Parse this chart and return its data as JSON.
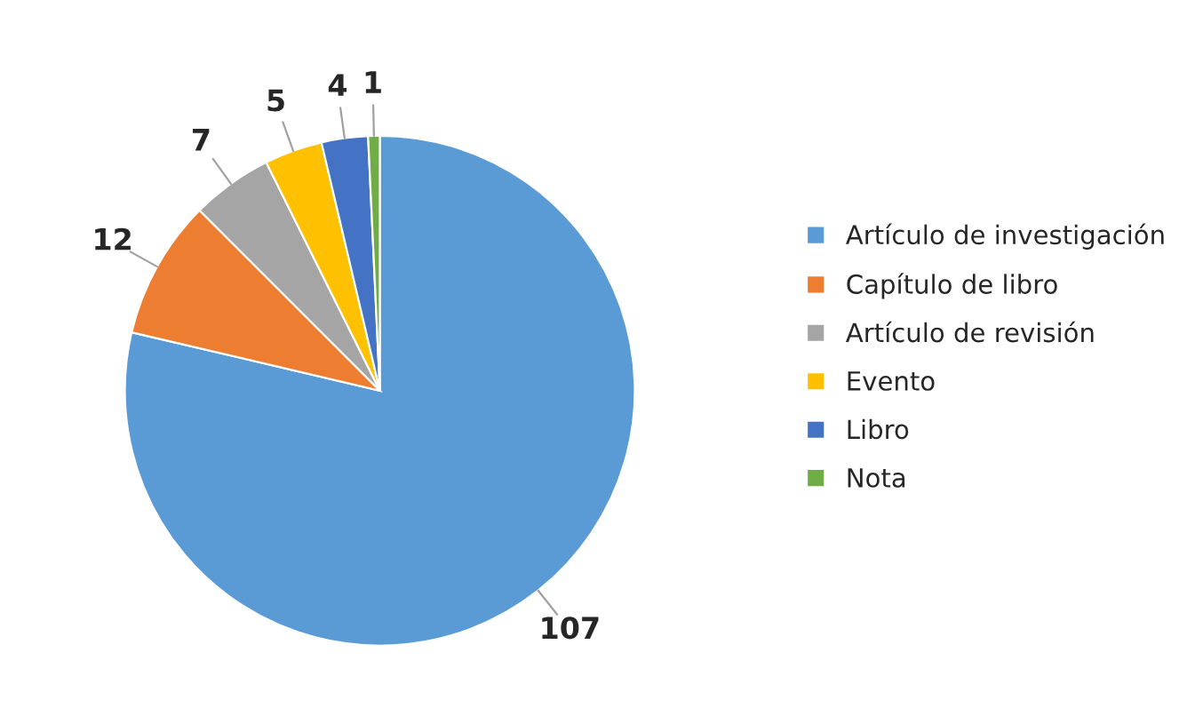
{
  "chart_data": {
    "type": "pie",
    "categories": [
      "Artículo de investigación",
      "Capítulo de libro",
      "Artículo de revisión",
      "Evento",
      "Libro",
      "Nota"
    ],
    "values": [
      107,
      12,
      7,
      5,
      4,
      1
    ],
    "colors": [
      "#5b9bd5",
      "#ed7d31",
      "#a5a5a5",
      "#ffc000",
      "#4472c4",
      "#70ad47"
    ],
    "data_labels": true,
    "legend": "right"
  }
}
